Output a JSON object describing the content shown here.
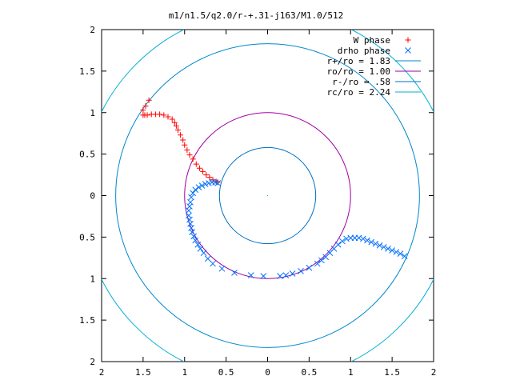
{
  "chart_data": {
    "type": "scatter",
    "title": "m1/n1.5/q2.0/r-+.31-j163/M1.0/512",
    "xlabel": "",
    "ylabel": "",
    "xlim": [
      -2,
      2
    ],
    "ylim": [
      -2,
      2
    ],
    "x_tick_values": [
      -2,
      -1.5,
      -1,
      -0.5,
      0,
      0.5,
      1,
      1.5,
      2
    ],
    "x_tick_labels": [
      "2",
      "1.5",
      "1",
      "0.5",
      "0",
      "0.5",
      "1",
      "1.5",
      "2"
    ],
    "y_tick_values": [
      2,
      1.5,
      1,
      0.5,
      0,
      -0.5,
      -1,
      -1.5,
      -2
    ],
    "y_tick_labels": [
      "2",
      "1.5",
      "1",
      "0.5",
      "0",
      "0.5",
      "1",
      "1.5",
      "2"
    ],
    "grid": false,
    "legend_position": "top-right",
    "series": [
      {
        "name": "W phase",
        "kind": "points",
        "marker": "+",
        "color": "#ff0000",
        "x": [
          -1.5,
          -1.48,
          -1.45,
          -1.4,
          -1.35,
          -1.3,
          -1.25,
          -1.2,
          -1.15,
          -1.12,
          -1.1,
          -1.08,
          -1.05,
          -1.02,
          -1.0,
          -0.97,
          -0.94,
          -0.9,
          -0.86,
          -0.82,
          -0.78,
          -0.74,
          -0.7,
          -0.66,
          -0.62,
          -0.6,
          -1.5,
          -1.47,
          -1.43
        ],
        "y": [
          0.97,
          0.97,
          0.97,
          0.98,
          0.98,
          0.98,
          0.97,
          0.95,
          0.92,
          0.88,
          0.84,
          0.79,
          0.73,
          0.67,
          0.61,
          0.55,
          0.49,
          0.44,
          0.38,
          0.33,
          0.29,
          0.25,
          0.22,
          0.19,
          0.17,
          0.16,
          1.03,
          1.08,
          1.15
        ]
      },
      {
        "name": "drho phase",
        "kind": "points",
        "marker": "x",
        "color": "#0070ff",
        "x": [
          -0.6,
          -0.63,
          -0.67,
          -0.71,
          -0.75,
          -0.79,
          -0.83,
          -0.87,
          -0.9,
          -0.92,
          -0.93,
          -0.94,
          -0.95,
          -0.95,
          -0.94,
          -0.93,
          -0.92,
          -0.91,
          -0.89,
          -0.87,
          -0.84,
          -0.81,
          -0.77,
          -0.72,
          -0.66,
          -0.55,
          -0.4,
          -0.2,
          -0.05,
          0.15,
          0.22,
          0.3,
          0.4,
          0.5,
          0.6,
          0.65,
          0.7,
          0.75,
          0.8,
          0.85,
          0.9,
          0.95,
          1.0,
          1.05,
          1.1,
          1.15,
          1.2,
          1.25,
          1.3,
          1.35,
          1.4,
          1.45,
          1.5,
          1.55,
          1.6,
          1.65
        ],
        "y": [
          0.15,
          0.16,
          0.16,
          0.15,
          0.14,
          0.12,
          0.1,
          0.07,
          0.03,
          -0.02,
          -0.08,
          -0.13,
          -0.18,
          -0.24,
          -0.29,
          -0.34,
          -0.39,
          -0.44,
          -0.49,
          -0.54,
          -0.59,
          -0.64,
          -0.69,
          -0.76,
          -0.82,
          -0.88,
          -0.93,
          -0.96,
          -0.97,
          -0.97,
          -0.96,
          -0.94,
          -0.91,
          -0.87,
          -0.82,
          -0.78,
          -0.74,
          -0.69,
          -0.64,
          -0.59,
          -0.55,
          -0.52,
          -0.51,
          -0.51,
          -0.51,
          -0.52,
          -0.54,
          -0.56,
          -0.58,
          -0.6,
          -0.62,
          -0.64,
          -0.66,
          -0.68,
          -0.7,
          -0.73
        ]
      },
      {
        "name": "r+/ro = 1.83",
        "kind": "circle",
        "radius": 1.83,
        "color": "#0088cc"
      },
      {
        "name": "ro/ro = 1.00",
        "kind": "circle",
        "radius": 1.0,
        "color": "#a000a0"
      },
      {
        "name": "r-/ro = .58",
        "kind": "circle",
        "radius": 0.58,
        "color": "#0070c0"
      },
      {
        "name": "rc/ro = 2.24",
        "kind": "circle",
        "radius": 2.24,
        "color": "#00b0d0"
      }
    ],
    "annotations": [
      {
        "kind": "dot",
        "x": 0,
        "y": 0,
        "color": "#00b0d0"
      }
    ]
  }
}
